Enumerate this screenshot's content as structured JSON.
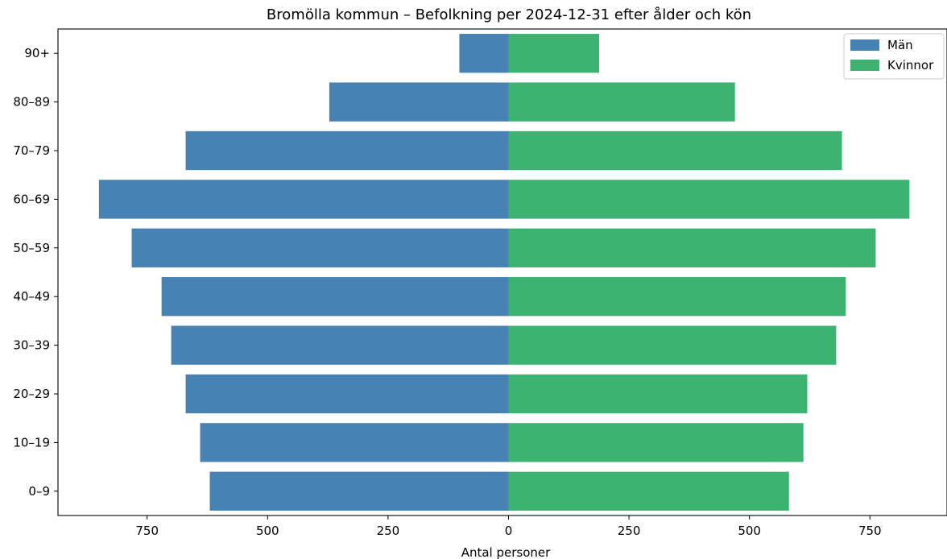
{
  "chart_data": {
    "type": "bar",
    "orientation": "horizontal",
    "title": "Bromölla kommun – Befolkning per 2024-12-31 efter ålder och kön",
    "xlabel": "Antal personer",
    "ylabel": "",
    "categories": [
      "0–9",
      "10–19",
      "20–29",
      "30–39",
      "40–49",
      "50–59",
      "60–69",
      "70–79",
      "80–89",
      "90+"
    ],
    "series": [
      {
        "name": "Män",
        "color": "#4682b4",
        "direction": "left",
        "values": [
          620,
          640,
          670,
          700,
          720,
          782,
          850,
          670,
          372,
          102
        ]
      },
      {
        "name": "Kvinnor",
        "color": "#3cb371",
        "direction": "right",
        "values": [
          582,
          612,
          620,
          680,
          700,
          762,
          832,
          692,
          470,
          188
        ]
      }
    ],
    "xlim": [
      -935,
      910
    ],
    "xticks": [
      -750,
      -500,
      -250,
      0,
      250,
      500,
      750
    ],
    "xtick_labels": [
      "750",
      "500",
      "250",
      "0",
      "250",
      "500",
      "750"
    ],
    "grid": false,
    "legend_position": "top-right"
  }
}
